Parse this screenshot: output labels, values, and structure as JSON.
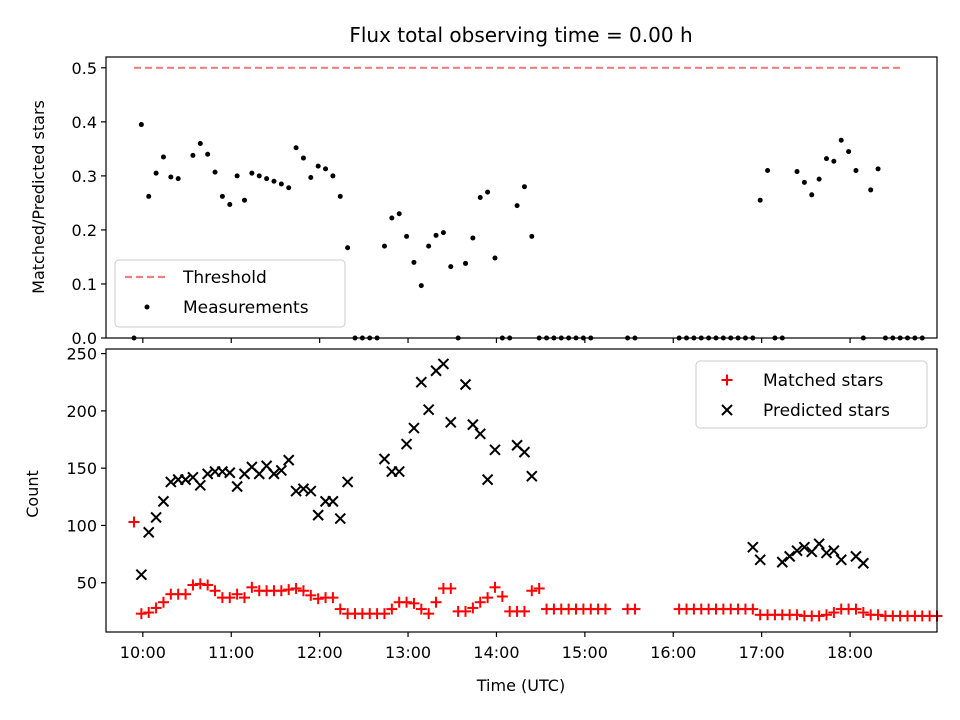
{
  "chart_data": [
    {
      "type": "scatter",
      "title": "Flux total observing time = 0.00 h",
      "xlabel": "",
      "ylabel": "Matched/Predicted stars",
      "xlim": [
        "09:35",
        "18:59"
      ],
      "ylim": [
        0,
        0.52
      ],
      "yticks": [
        "0.0",
        "0.1",
        "0.2",
        "0.3",
        "0.4",
        "0.5"
      ],
      "legend_location": "lower-left",
      "threshold": {
        "name": "Threshold",
        "value": 0.5,
        "x_range": [
          "09:54",
          "18:35"
        ],
        "color": "#f08080"
      },
      "series": [
        {
          "name": "Measurements",
          "color": "#000000",
          "points": [
            [
              "09:54",
              0.0
            ],
            [
              "09:59",
              0.395
            ],
            [
              "10:04",
              0.262
            ],
            [
              "10:09",
              0.305
            ],
            [
              "10:14",
              0.335
            ],
            [
              "10:19",
              0.298
            ],
            [
              "10:24",
              0.295
            ],
            [
              "10:34",
              0.338
            ],
            [
              "10:39",
              0.36
            ],
            [
              "10:44",
              0.34
            ],
            [
              "10:49",
              0.307
            ],
            [
              "10:54",
              0.262
            ],
            [
              "10:59",
              0.247
            ],
            [
              "11:04",
              0.3
            ],
            [
              "11:09",
              0.255
            ],
            [
              "11:14",
              0.305
            ],
            [
              "11:19",
              0.3
            ],
            [
              "11:24",
              0.295
            ],
            [
              "11:29",
              0.29
            ],
            [
              "11:34",
              0.285
            ],
            [
              "11:39",
              0.278
            ],
            [
              "11:44",
              0.352
            ],
            [
              "11:49",
              0.333
            ],
            [
              "11:54",
              0.297
            ],
            [
              "11:59",
              0.318
            ],
            [
              "12:04",
              0.313
            ],
            [
              "12:09",
              0.3
            ],
            [
              "12:14",
              0.262
            ],
            [
              "12:19",
              0.167
            ],
            [
              "12:24",
              0.0
            ],
            [
              "12:29",
              0.0
            ],
            [
              "12:34",
              0.0
            ],
            [
              "12:39",
              0.0
            ],
            [
              "12:44",
              0.17
            ],
            [
              "12:49",
              0.222
            ],
            [
              "12:54",
              0.23
            ],
            [
              "12:59",
              0.188
            ],
            [
              "13:04",
              0.14
            ],
            [
              "13:09",
              0.097
            ],
            [
              "13:14",
              0.17
            ],
            [
              "13:19",
              0.19
            ],
            [
              "13:24",
              0.195
            ],
            [
              "13:29",
              0.132
            ],
            [
              "13:34",
              0.0
            ],
            [
              "13:39",
              0.138
            ],
            [
              "13:44",
              0.185
            ],
            [
              "13:49",
              0.26
            ],
            [
              "13:54",
              0.27
            ],
            [
              "13:59",
              0.148
            ],
            [
              "14:04",
              0.0
            ],
            [
              "14:09",
              0.0
            ],
            [
              "14:14",
              0.245
            ],
            [
              "14:19",
              0.28
            ],
            [
              "14:24",
              0.188
            ],
            [
              "14:29",
              0.0
            ],
            [
              "14:34",
              0.0
            ],
            [
              "14:39",
              0.0
            ],
            [
              "14:44",
              0.0
            ],
            [
              "14:49",
              0.0
            ],
            [
              "14:54",
              0.0
            ],
            [
              "14:59",
              0.0
            ],
            [
              "15:04",
              0.0
            ],
            [
              "15:29",
              0.0
            ],
            [
              "15:34",
              0.0
            ],
            [
              "16:04",
              0.0
            ],
            [
              "16:09",
              0.0
            ],
            [
              "16:14",
              0.0
            ],
            [
              "16:19",
              0.0
            ],
            [
              "16:24",
              0.0
            ],
            [
              "16:29",
              0.0
            ],
            [
              "16:34",
              0.0
            ],
            [
              "16:39",
              0.0
            ],
            [
              "16:44",
              0.0
            ],
            [
              "16:49",
              0.0
            ],
            [
              "16:54",
              0.0
            ],
            [
              "16:59",
              0.255
            ],
            [
              "17:04",
              0.31
            ],
            [
              "17:09",
              0.0
            ],
            [
              "17:14",
              0.0
            ],
            [
              "17:24",
              0.308
            ],
            [
              "17:29",
              0.288
            ],
            [
              "17:34",
              0.265
            ],
            [
              "17:39",
              0.294
            ],
            [
              "17:44",
              0.332
            ],
            [
              "17:49",
              0.327
            ],
            [
              "17:54",
              0.366
            ],
            [
              "17:59",
              0.345
            ],
            [
              "18:04",
              0.31
            ],
            [
              "18:09",
              0.0
            ],
            [
              "18:14",
              0.274
            ],
            [
              "18:19",
              0.313
            ],
            [
              "18:24",
              0.0
            ],
            [
              "18:29",
              0.0
            ],
            [
              "18:34",
              0.0
            ],
            [
              "18:39",
              0.0
            ],
            [
              "18:44",
              0.0
            ],
            [
              "18:49",
              0.0
            ]
          ]
        }
      ]
    },
    {
      "type": "scatter",
      "title": "",
      "xlabel": "Time (UTC)",
      "ylabel": "Count",
      "xlim": [
        "09:35",
        "18:59"
      ],
      "ylim": [
        7,
        254
      ],
      "xticks": [
        "10:00",
        "11:00",
        "12:00",
        "13:00",
        "14:00",
        "15:00",
        "16:00",
        "17:00",
        "18:00"
      ],
      "yticks": [
        "50",
        "100",
        "150",
        "200",
        "250"
      ],
      "legend_location": "top-right",
      "series": [
        {
          "name": "Matched stars",
          "color": "#ff0000",
          "marker": "+",
          "points": [
            [
              "09:54",
              103
            ],
            [
              "09:59",
              23
            ],
            [
              "10:04",
              24
            ],
            [
              "10:09",
              28
            ],
            [
              "10:14",
              33
            ],
            [
              "10:19",
              40
            ],
            [
              "10:24",
              40
            ],
            [
              "10:29",
              40
            ],
            [
              "10:34",
              48
            ],
            [
              "10:39",
              49
            ],
            [
              "10:44",
              48
            ],
            [
              "10:49",
              43
            ],
            [
              "10:54",
              37
            ],
            [
              "10:59",
              37
            ],
            [
              "11:04",
              40
            ],
            [
              "11:09",
              37
            ],
            [
              "11:14",
              46
            ],
            [
              "11:19",
              43
            ],
            [
              "11:24",
              43
            ],
            [
              "11:29",
              43
            ],
            [
              "11:34",
              43
            ],
            [
              "11:39",
              44
            ],
            [
              "11:44",
              45
            ],
            [
              "11:49",
              43
            ],
            [
              "11:54",
              39
            ],
            [
              "11:59",
              36
            ],
            [
              "12:04",
              37
            ],
            [
              "12:09",
              37
            ],
            [
              "12:14",
              27
            ],
            [
              "12:19",
              23
            ],
            [
              "12:24",
              23
            ],
            [
              "12:29",
              23
            ],
            [
              "12:34",
              23
            ],
            [
              "12:39",
              23
            ],
            [
              "12:44",
              23
            ],
            [
              "12:49",
              27
            ],
            [
              "12:54",
              33
            ],
            [
              "12:59",
              33
            ],
            [
              "13:04",
              32
            ],
            [
              "13:09",
              27
            ],
            [
              "13:14",
              23
            ],
            [
              "13:19",
              33
            ],
            [
              "13:24",
              45
            ],
            [
              "13:29",
              45
            ],
            [
              "13:34",
              25
            ],
            [
              "13:39",
              25
            ],
            [
              "13:44",
              28
            ],
            [
              "13:49",
              33
            ],
            [
              "13:54",
              37
            ],
            [
              "13:59",
              46
            ],
            [
              "14:04",
              38
            ],
            [
              "14:09",
              25
            ],
            [
              "14:14",
              25
            ],
            [
              "14:19",
              25
            ],
            [
              "14:24",
              43
            ],
            [
              "14:29",
              45
            ],
            [
              "14:34",
              27
            ],
            [
              "14:39",
              27
            ],
            [
              "14:44",
              27
            ],
            [
              "14:49",
              27
            ],
            [
              "14:54",
              27
            ],
            [
              "14:59",
              27
            ],
            [
              "15:04",
              27
            ],
            [
              "15:09",
              27
            ],
            [
              "15:14",
              27
            ],
            [
              "15:29",
              27
            ],
            [
              "15:34",
              27
            ],
            [
              "16:04",
              27
            ],
            [
              "16:09",
              27
            ],
            [
              "16:14",
              27
            ],
            [
              "16:19",
              27
            ],
            [
              "16:24",
              27
            ],
            [
              "16:29",
              27
            ],
            [
              "16:34",
              27
            ],
            [
              "16:39",
              27
            ],
            [
              "16:44",
              27
            ],
            [
              "16:49",
              27
            ],
            [
              "16:54",
              27
            ],
            [
              "16:59",
              22
            ],
            [
              "17:04",
              22
            ],
            [
              "17:09",
              22
            ],
            [
              "17:14",
              22
            ],
            [
              "17:19",
              22
            ],
            [
              "17:24",
              22
            ],
            [
              "17:29",
              21
            ],
            [
              "17:34",
              21
            ],
            [
              "17:39",
              21
            ],
            [
              "17:44",
              22
            ],
            [
              "17:49",
              24
            ],
            [
              "17:54",
              27
            ],
            [
              "17:59",
              27
            ],
            [
              "18:04",
              27
            ],
            [
              "18:09",
              24
            ],
            [
              "18:14",
              22
            ],
            [
              "18:19",
              22
            ],
            [
              "18:24",
              21
            ],
            [
              "18:29",
              21
            ],
            [
              "18:34",
              21
            ],
            [
              "18:39",
              21
            ],
            [
              "18:44",
              21
            ],
            [
              "18:49",
              21
            ],
            [
              "18:54",
              21
            ],
            [
              "18:59",
              21
            ]
          ]
        },
        {
          "name": "Predicted stars",
          "color": "#000000",
          "marker": "x",
          "points": [
            [
              "09:59",
              57
            ],
            [
              "10:04",
              94
            ],
            [
              "10:09",
              107
            ],
            [
              "10:14",
              121
            ],
            [
              "10:19",
              138
            ],
            [
              "10:24",
              140
            ],
            [
              "10:29",
              140
            ],
            [
              "10:34",
              142
            ],
            [
              "10:39",
              135
            ],
            [
              "10:44",
              145
            ],
            [
              "10:49",
              147
            ],
            [
              "10:54",
              147
            ],
            [
              "10:59",
              146
            ],
            [
              "11:04",
              134
            ],
            [
              "11:09",
              145
            ],
            [
              "11:14",
              151
            ],
            [
              "11:19",
              145
            ],
            [
              "11:24",
              152
            ],
            [
              "11:29",
              145
            ],
            [
              "11:34",
              148
            ],
            [
              "11:39",
              157
            ],
            [
              "11:44",
              130
            ],
            [
              "11:49",
              132
            ],
            [
              "11:54",
              130
            ],
            [
              "11:59",
              109
            ],
            [
              "12:04",
              121
            ],
            [
              "12:09",
              121
            ],
            [
              "12:14",
              106
            ],
            [
              "12:19",
              138
            ],
            [
              "12:44",
              158
            ],
            [
              "12:49",
              147
            ],
            [
              "12:54",
              147
            ],
            [
              "12:59",
              171
            ],
            [
              "13:04",
              185
            ],
            [
              "13:09",
              225
            ],
            [
              "13:14",
              201
            ],
            [
              "13:19",
              235
            ],
            [
              "13:24",
              241
            ],
            [
              "13:29",
              190
            ],
            [
              "13:39",
              223
            ],
            [
              "13:44",
              188
            ],
            [
              "13:49",
              180
            ],
            [
              "13:54",
              140
            ],
            [
              "13:59",
              166
            ],
            [
              "14:14",
              170
            ],
            [
              "14:19",
              164
            ],
            [
              "14:24",
              143
            ],
            [
              "16:54",
              81
            ],
            [
              "16:59",
              70
            ],
            [
              "17:14",
              68
            ],
            [
              "17:19",
              73
            ],
            [
              "17:24",
              78
            ],
            [
              "17:29",
              81
            ],
            [
              "17:34",
              77
            ],
            [
              "17:39",
              84
            ],
            [
              "17:44",
              76
            ],
            [
              "17:49",
              78
            ],
            [
              "17:54",
              70
            ],
            [
              "18:04",
              73
            ],
            [
              "18:09",
              67
            ]
          ]
        }
      ]
    }
  ]
}
